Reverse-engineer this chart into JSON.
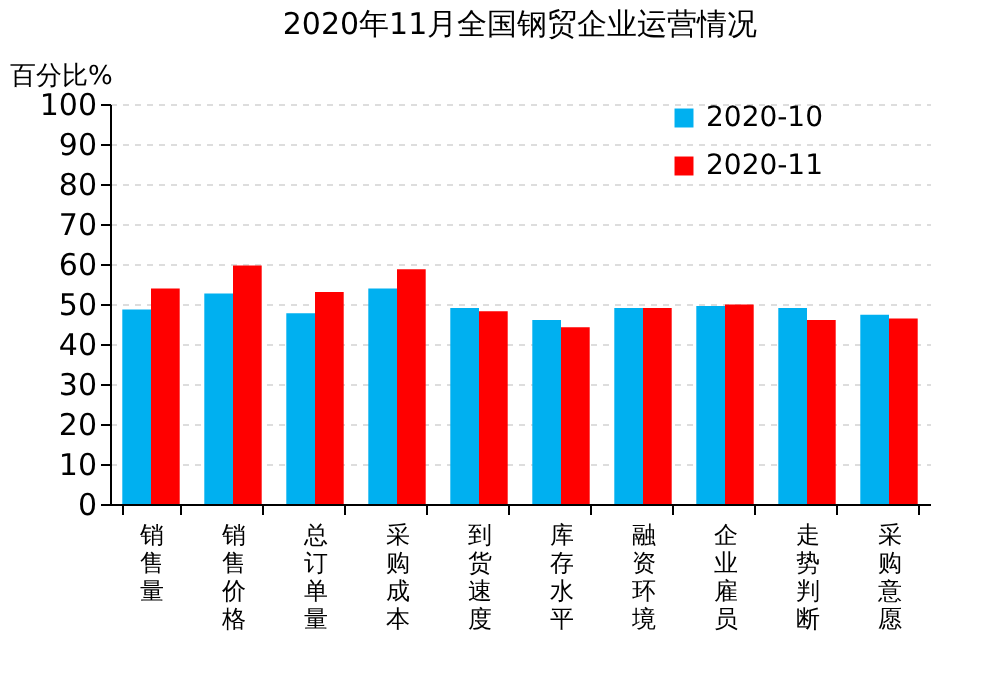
{
  "chart_data": {
    "type": "bar",
    "title": "2020年11月全国钢贸企业运营情况",
    "ylabel": "百分比%",
    "categories": [
      "销售量",
      "销售价格",
      "总订单量",
      "采购成本",
      "到货速度",
      "库存水平",
      "融资环境",
      "企业雇员",
      "走势判断",
      "采购意愿"
    ],
    "series": [
      {
        "name": "2020-10",
        "color": "#00b0f0",
        "values": [
          48.6,
          52.6,
          47.7,
          53.9,
          49.0,
          46.0,
          49.0,
          49.5,
          49.0,
          47.3
        ]
      },
      {
        "name": "2020-11",
        "color": "#ff0000",
        "values": [
          53.9,
          59.6,
          53.0,
          58.7,
          48.2,
          44.2,
          49.0,
          49.9,
          46.0,
          46.4
        ]
      }
    ],
    "ylim": [
      0,
      100
    ],
    "yticks": [
      0,
      10,
      20,
      30,
      40,
      50,
      60,
      70,
      80,
      90,
      100
    ],
    "grid": "y",
    "legend": "top right"
  }
}
